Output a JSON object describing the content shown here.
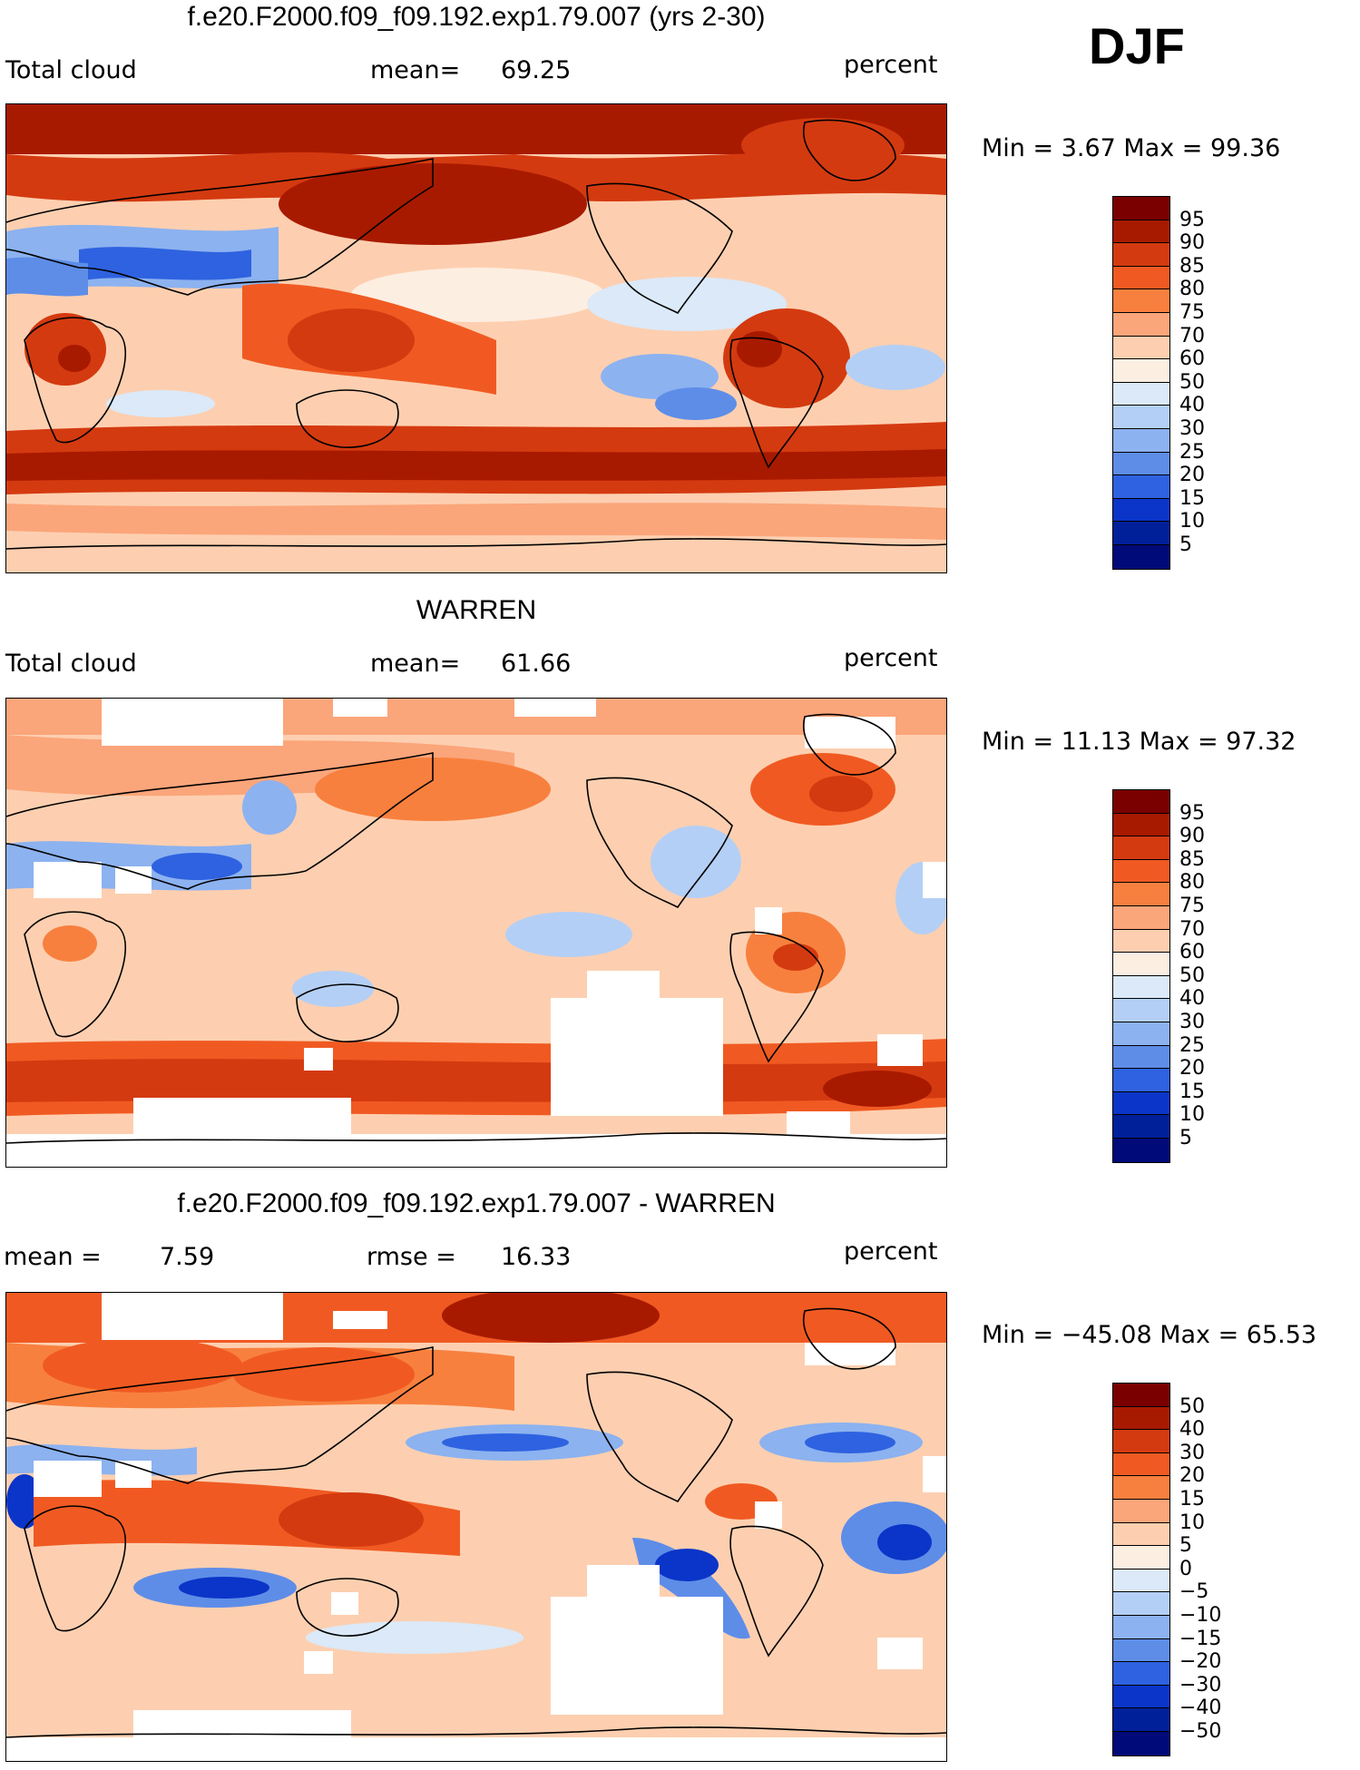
{
  "season": "DJF",
  "panels": [
    {
      "title": "f.e20.F2000.f09_f09.192.exp1.79.007 (yrs 2-30)",
      "left_text": "Total cloud",
      "center_label": "mean=",
      "center_value": "69.25",
      "right_text": "percent",
      "minmax": "Min =    3.67 Max =   99.36",
      "colorbar_labels": [
        "95",
        "90",
        "85",
        "80",
        "75",
        "70",
        "60",
        "50",
        "40",
        "30",
        "25",
        "20",
        "15",
        "10",
        "5"
      ],
      "colors": [
        "#7a0000",
        "#a81a00",
        "#d43a10",
        "#f05a22",
        "#f8803e",
        "#fba57a",
        "#fdcfb0",
        "#fdeee2",
        "#dbe9f8",
        "#b4cff5",
        "#8cb2f0",
        "#5e8de8",
        "#2f62e0",
        "#0a35c8",
        "#00209a",
        "#000a78"
      ]
    },
    {
      "title": "WARREN",
      "left_text": "Total cloud",
      "center_label": "mean=",
      "center_value": "61.66",
      "right_text": "percent",
      "minmax": "Min =   11.13 Max =   97.32",
      "colorbar_labels": [
        "95",
        "90",
        "85",
        "80",
        "75",
        "70",
        "60",
        "50",
        "40",
        "30",
        "25",
        "20",
        "15",
        "10",
        "5"
      ],
      "colors": [
        "#7a0000",
        "#a81a00",
        "#d43a10",
        "#f05a22",
        "#f8803e",
        "#fba57a",
        "#fdcfb0",
        "#fdeee2",
        "#dbe9f8",
        "#b4cff5",
        "#8cb2f0",
        "#5e8de8",
        "#2f62e0",
        "#0a35c8",
        "#00209a",
        "#000a78"
      ]
    },
    {
      "title": "f.e20.F2000.f09_f09.192.exp1.79.007 - WARREN",
      "left_text": "mean =",
      "left_value": "7.59",
      "center_label": "rmse =",
      "center_value": "16.33",
      "right_text": "percent",
      "minmax": "Min = −45.08 Max =   65.53",
      "colorbar_labels": [
        "50",
        "40",
        "30",
        "20",
        "15",
        "10",
        "5",
        "0",
        "−5",
        "−10",
        "−15",
        "−20",
        "−30",
        "−40",
        "−50"
      ],
      "colors": [
        "#7a0000",
        "#a81a00",
        "#d43a10",
        "#f05a22",
        "#f8803e",
        "#fba57a",
        "#fdcfb0",
        "#fdeee2",
        "#dbe9f8",
        "#b4cff5",
        "#8cb2f0",
        "#5e8de8",
        "#2f62e0",
        "#0a35c8",
        "#00209a",
        "#000a78"
      ]
    }
  ]
}
